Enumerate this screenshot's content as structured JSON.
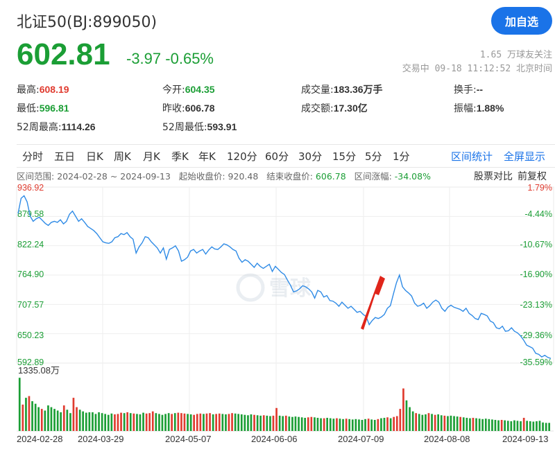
{
  "header": {
    "title": "北证50(BJ:899050)",
    "add_button": "加自选",
    "price": "602.81",
    "change": "-3.97",
    "change_pct": "-0.65%",
    "followers": "1.65 万球友关注",
    "status": "交易中 09-18 11:12:52 北京时间"
  },
  "stats": {
    "high_label": "最高:",
    "high": "608.19",
    "low_label": "最低:",
    "low": "596.81",
    "w52h_label": "52周最高:",
    "w52h": "1114.26",
    "open_label": "今开:",
    "open": "604.35",
    "prev_label": "昨收:",
    "prev": "606.78",
    "w52l_label": "52周最低:",
    "w52l": "593.91",
    "vol_label": "成交量:",
    "vol": "183.36万手",
    "amt_label": "成交额:",
    "amt": "17.30亿",
    "turn_label": "换手:",
    "turn": "--",
    "amp_label": "振幅:",
    "amp": "1.88%"
  },
  "tabs": [
    "分时",
    "五日",
    "日K",
    "周K",
    "月K",
    "季K",
    "年K",
    "120分",
    "60分",
    "30分",
    "15分",
    "5分",
    "1分"
  ],
  "tab_links": [
    "区间统计",
    "全屏显示"
  ],
  "range": {
    "range_label": "区间范围:",
    "range_value": "2024-02-28 ~ 2024-09-13",
    "start_label": "起始收盘价:",
    "start_value": "920.48",
    "end_label": "结束收盘价:",
    "end_value": "606.78",
    "pct_label": "区间涨幅:",
    "pct_value": "-34.08%",
    "compare": "股票对比",
    "adjust": "前复权"
  },
  "watermark": "雪球",
  "colors": {
    "line": "#2f8be6",
    "up": "#e03b2f",
    "down": "#1b9e35",
    "arrow": "#e0251a"
  },
  "chart_data": {
    "type": "line",
    "title": "",
    "x_ticks": [
      "2024-02-28",
      "2024-03-29",
      "2024-05-07",
      "2024-06-06",
      "2024-07-09",
      "2024-08-08",
      "2024-09-13"
    ],
    "ylim": [
      592.89,
      936.92
    ],
    "y_ticks_left": [
      "936.92",
      "879.58",
      "822.24",
      "764.90",
      "707.57",
      "650.23",
      "592.89"
    ],
    "y_ticks_right": [
      "1.79%",
      "-4.44%",
      "-10.67%",
      "-16.90%",
      "-23.13%",
      "-29.36%",
      "-35.59%"
    ],
    "volume_max_label": "1335.08万",
    "series": [
      {
        "values": [
          885,
          915,
          920,
          908,
          880,
          870,
          875,
          878,
          872,
          866,
          862,
          868,
          870,
          868,
          873,
          865,
          870,
          884,
          890,
          880,
          870,
          875,
          868,
          860,
          856,
          852,
          846,
          838,
          830,
          828,
          827,
          830,
          838,
          840,
          846,
          844,
          848,
          840,
          835,
          808,
          820,
          828,
          840,
          838,
          830,
          824,
          818,
          808,
          818,
          796,
          815,
          818,
          822,
          812,
          792,
          795,
          800,
          812,
          815,
          808,
          812,
          815,
          806,
          814,
          820,
          816,
          815,
          820,
          826,
          824,
          820,
          815,
          812,
          798,
          790,
          795,
          792,
          786,
          780,
          788,
          782,
          778,
          782,
          786,
          772,
          782,
          776,
          770,
          766,
          755,
          745,
          732,
          734,
          738,
          744,
          742,
          738,
          732,
          720,
          735,
          732,
          722,
          725,
          715,
          714,
          710,
          704,
          712,
          706,
          700,
          704,
          698,
          692,
          694,
          688,
          684,
          668,
          676,
          682,
          680,
          683,
          688,
          700,
          705,
          728,
          750,
          765,
          742,
          735,
          730,
          724,
          710,
          704,
          706,
          710,
          700,
          705,
          712,
          716,
          712,
          700,
          694,
          702,
          706,
          702,
          700,
          698,
          694,
          700,
          690,
          686,
          680,
          678,
          690,
          688,
          685,
          675,
          672,
          662,
          660,
          665,
          655,
          656,
          662,
          655,
          652,
          646,
          638,
          628,
          625,
          622,
          612,
          610,
          605,
          608,
          604,
          602
        ]
      }
    ],
    "volume": [
      {
        "v": 1250,
        "d": "dn"
      },
      {
        "v": 620,
        "d": "up"
      },
      {
        "v": 780,
        "d": "dn"
      },
      {
        "v": 820,
        "d": "up"
      },
      {
        "v": 700,
        "d": "dn"
      },
      {
        "v": 640,
        "d": "dn"
      },
      {
        "v": 560,
        "d": "dn"
      },
      {
        "v": 520,
        "d": "up"
      },
      {
        "v": 480,
        "d": "dn"
      },
      {
        "v": 600,
        "d": "dn"
      },
      {
        "v": 560,
        "d": "dn"
      },
      {
        "v": 520,
        "d": "dn"
      },
      {
        "v": 480,
        "d": "dn"
      },
      {
        "v": 440,
        "d": "dn"
      },
      {
        "v": 600,
        "d": "up"
      },
      {
        "v": 500,
        "d": "dn"
      },
      {
        "v": 420,
        "d": "dn"
      },
      {
        "v": 780,
        "d": "up"
      },
      {
        "v": 560,
        "d": "up"
      },
      {
        "v": 500,
        "d": "dn"
      },
      {
        "v": 460,
        "d": "dn"
      },
      {
        "v": 430,
        "d": "dn"
      },
      {
        "v": 440,
        "d": "dn"
      },
      {
        "v": 440,
        "d": "dn"
      },
      {
        "v": 400,
        "d": "dn"
      },
      {
        "v": 440,
        "d": "dn"
      },
      {
        "v": 420,
        "d": "dn"
      },
      {
        "v": 400,
        "d": "dn"
      },
      {
        "v": 380,
        "d": "dn"
      },
      {
        "v": 410,
        "d": "dn"
      },
      {
        "v": 390,
        "d": "up"
      },
      {
        "v": 400,
        "d": "up"
      },
      {
        "v": 430,
        "d": "up"
      },
      {
        "v": 420,
        "d": "dn"
      },
      {
        "v": 440,
        "d": "up"
      },
      {
        "v": 420,
        "d": "dn"
      },
      {
        "v": 410,
        "d": "up"
      },
      {
        "v": 400,
        "d": "dn"
      },
      {
        "v": 390,
        "d": "dn"
      },
      {
        "v": 430,
        "d": "dn"
      },
      {
        "v": 410,
        "d": "up"
      },
      {
        "v": 420,
        "d": "up"
      },
      {
        "v": 460,
        "d": "up"
      },
      {
        "v": 420,
        "d": "dn"
      },
      {
        "v": 400,
        "d": "dn"
      },
      {
        "v": 380,
        "d": "dn"
      },
      {
        "v": 400,
        "d": "dn"
      },
      {
        "v": 420,
        "d": "dn"
      },
      {
        "v": 400,
        "d": "up"
      },
      {
        "v": 420,
        "d": "dn"
      },
      {
        "v": 430,
        "d": "up"
      },
      {
        "v": 420,
        "d": "up"
      },
      {
        "v": 410,
        "d": "up"
      },
      {
        "v": 400,
        "d": "dn"
      },
      {
        "v": 390,
        "d": "dn"
      },
      {
        "v": 380,
        "d": "up"
      },
      {
        "v": 400,
        "d": "up"
      },
      {
        "v": 410,
        "d": "up"
      },
      {
        "v": 400,
        "d": "dn"
      },
      {
        "v": 410,
        "d": "up"
      },
      {
        "v": 420,
        "d": "up"
      },
      {
        "v": 390,
        "d": "dn"
      },
      {
        "v": 400,
        "d": "up"
      },
      {
        "v": 410,
        "d": "up"
      },
      {
        "v": 400,
        "d": "dn"
      },
      {
        "v": 390,
        "d": "dn"
      },
      {
        "v": 400,
        "d": "up"
      },
      {
        "v": 420,
        "d": "up"
      },
      {
        "v": 410,
        "d": "dn"
      },
      {
        "v": 400,
        "d": "dn"
      },
      {
        "v": 390,
        "d": "dn"
      },
      {
        "v": 380,
        "d": "dn"
      },
      {
        "v": 370,
        "d": "dn"
      },
      {
        "v": 390,
        "d": "dn"
      },
      {
        "v": 380,
        "d": "up"
      },
      {
        "v": 370,
        "d": "dn"
      },
      {
        "v": 360,
        "d": "dn"
      },
      {
        "v": 370,
        "d": "up"
      },
      {
        "v": 360,
        "d": "dn"
      },
      {
        "v": 350,
        "d": "dn"
      },
      {
        "v": 360,
        "d": "up"
      },
      {
        "v": 540,
        "d": "up"
      },
      {
        "v": 360,
        "d": "dn"
      },
      {
        "v": 350,
        "d": "dn"
      },
      {
        "v": 360,
        "d": "up"
      },
      {
        "v": 340,
        "d": "dn"
      },
      {
        "v": 330,
        "d": "dn"
      },
      {
        "v": 340,
        "d": "dn"
      },
      {
        "v": 330,
        "d": "dn"
      },
      {
        "v": 320,
        "d": "dn"
      },
      {
        "v": 310,
        "d": "dn"
      },
      {
        "v": 320,
        "d": "up"
      },
      {
        "v": 330,
        "d": "up"
      },
      {
        "v": 320,
        "d": "dn"
      },
      {
        "v": 310,
        "d": "dn"
      },
      {
        "v": 300,
        "d": "dn"
      },
      {
        "v": 300,
        "d": "up"
      },
      {
        "v": 310,
        "d": "dn"
      },
      {
        "v": 300,
        "d": "dn"
      },
      {
        "v": 290,
        "d": "dn"
      },
      {
        "v": 300,
        "d": "up"
      },
      {
        "v": 290,
        "d": "dn"
      },
      {
        "v": 280,
        "d": "dn"
      },
      {
        "v": 290,
        "d": "up"
      },
      {
        "v": 280,
        "d": "dn"
      },
      {
        "v": 270,
        "d": "dn"
      },
      {
        "v": 280,
        "d": "dn"
      },
      {
        "v": 270,
        "d": "dn"
      },
      {
        "v": 260,
        "d": "dn"
      },
      {
        "v": 280,
        "d": "dn"
      },
      {
        "v": 290,
        "d": "up"
      },
      {
        "v": 270,
        "d": "dn"
      },
      {
        "v": 260,
        "d": "dn"
      },
      {
        "v": 280,
        "d": "up"
      },
      {
        "v": 300,
        "d": "dn"
      },
      {
        "v": 310,
        "d": "dn"
      },
      {
        "v": 320,
        "d": "up"
      },
      {
        "v": 300,
        "d": "dn"
      },
      {
        "v": 330,
        "d": "up"
      },
      {
        "v": 350,
        "d": "up"
      },
      {
        "v": 520,
        "d": "up"
      },
      {
        "v": 1000,
        "d": "up"
      },
      {
        "v": 720,
        "d": "dn"
      },
      {
        "v": 560,
        "d": "dn"
      },
      {
        "v": 460,
        "d": "dn"
      },
      {
        "v": 420,
        "d": "up"
      },
      {
        "v": 400,
        "d": "dn"
      },
      {
        "v": 380,
        "d": "dn"
      },
      {
        "v": 390,
        "d": "dn"
      },
      {
        "v": 420,
        "d": "up"
      },
      {
        "v": 400,
        "d": "dn"
      },
      {
        "v": 380,
        "d": "up"
      },
      {
        "v": 390,
        "d": "dn"
      },
      {
        "v": 370,
        "d": "dn"
      },
      {
        "v": 360,
        "d": "up"
      },
      {
        "v": 350,
        "d": "dn"
      },
      {
        "v": 360,
        "d": "dn"
      },
      {
        "v": 350,
        "d": "dn"
      },
      {
        "v": 340,
        "d": "dn"
      },
      {
        "v": 330,
        "d": "up"
      },
      {
        "v": 320,
        "d": "dn"
      },
      {
        "v": 310,
        "d": "dn"
      },
      {
        "v": 300,
        "d": "dn"
      },
      {
        "v": 310,
        "d": "up"
      },
      {
        "v": 300,
        "d": "dn"
      },
      {
        "v": 290,
        "d": "dn"
      },
      {
        "v": 280,
        "d": "dn"
      },
      {
        "v": 290,
        "d": "dn"
      },
      {
        "v": 280,
        "d": "dn"
      },
      {
        "v": 270,
        "d": "dn"
      },
      {
        "v": 260,
        "d": "dn"
      },
      {
        "v": 250,
        "d": "dn"
      },
      {
        "v": 260,
        "d": "up"
      },
      {
        "v": 250,
        "d": "dn"
      },
      {
        "v": 240,
        "d": "dn"
      },
      {
        "v": 230,
        "d": "dn"
      },
      {
        "v": 250,
        "d": "dn"
      },
      {
        "v": 240,
        "d": "dn"
      },
      {
        "v": 230,
        "d": "dn"
      },
      {
        "v": 310,
        "d": "up"
      },
      {
        "v": 240,
        "d": "dn"
      },
      {
        "v": 230,
        "d": "dn"
      },
      {
        "v": 220,
        "d": "dn"
      },
      {
        "v": 230,
        "d": "dn"
      },
      {
        "v": 240,
        "d": "dn"
      },
      {
        "v": 200,
        "d": "dn"
      },
      {
        "v": 190,
        "d": "dn"
      },
      {
        "v": 190,
        "d": "dn"
      }
    ]
  }
}
